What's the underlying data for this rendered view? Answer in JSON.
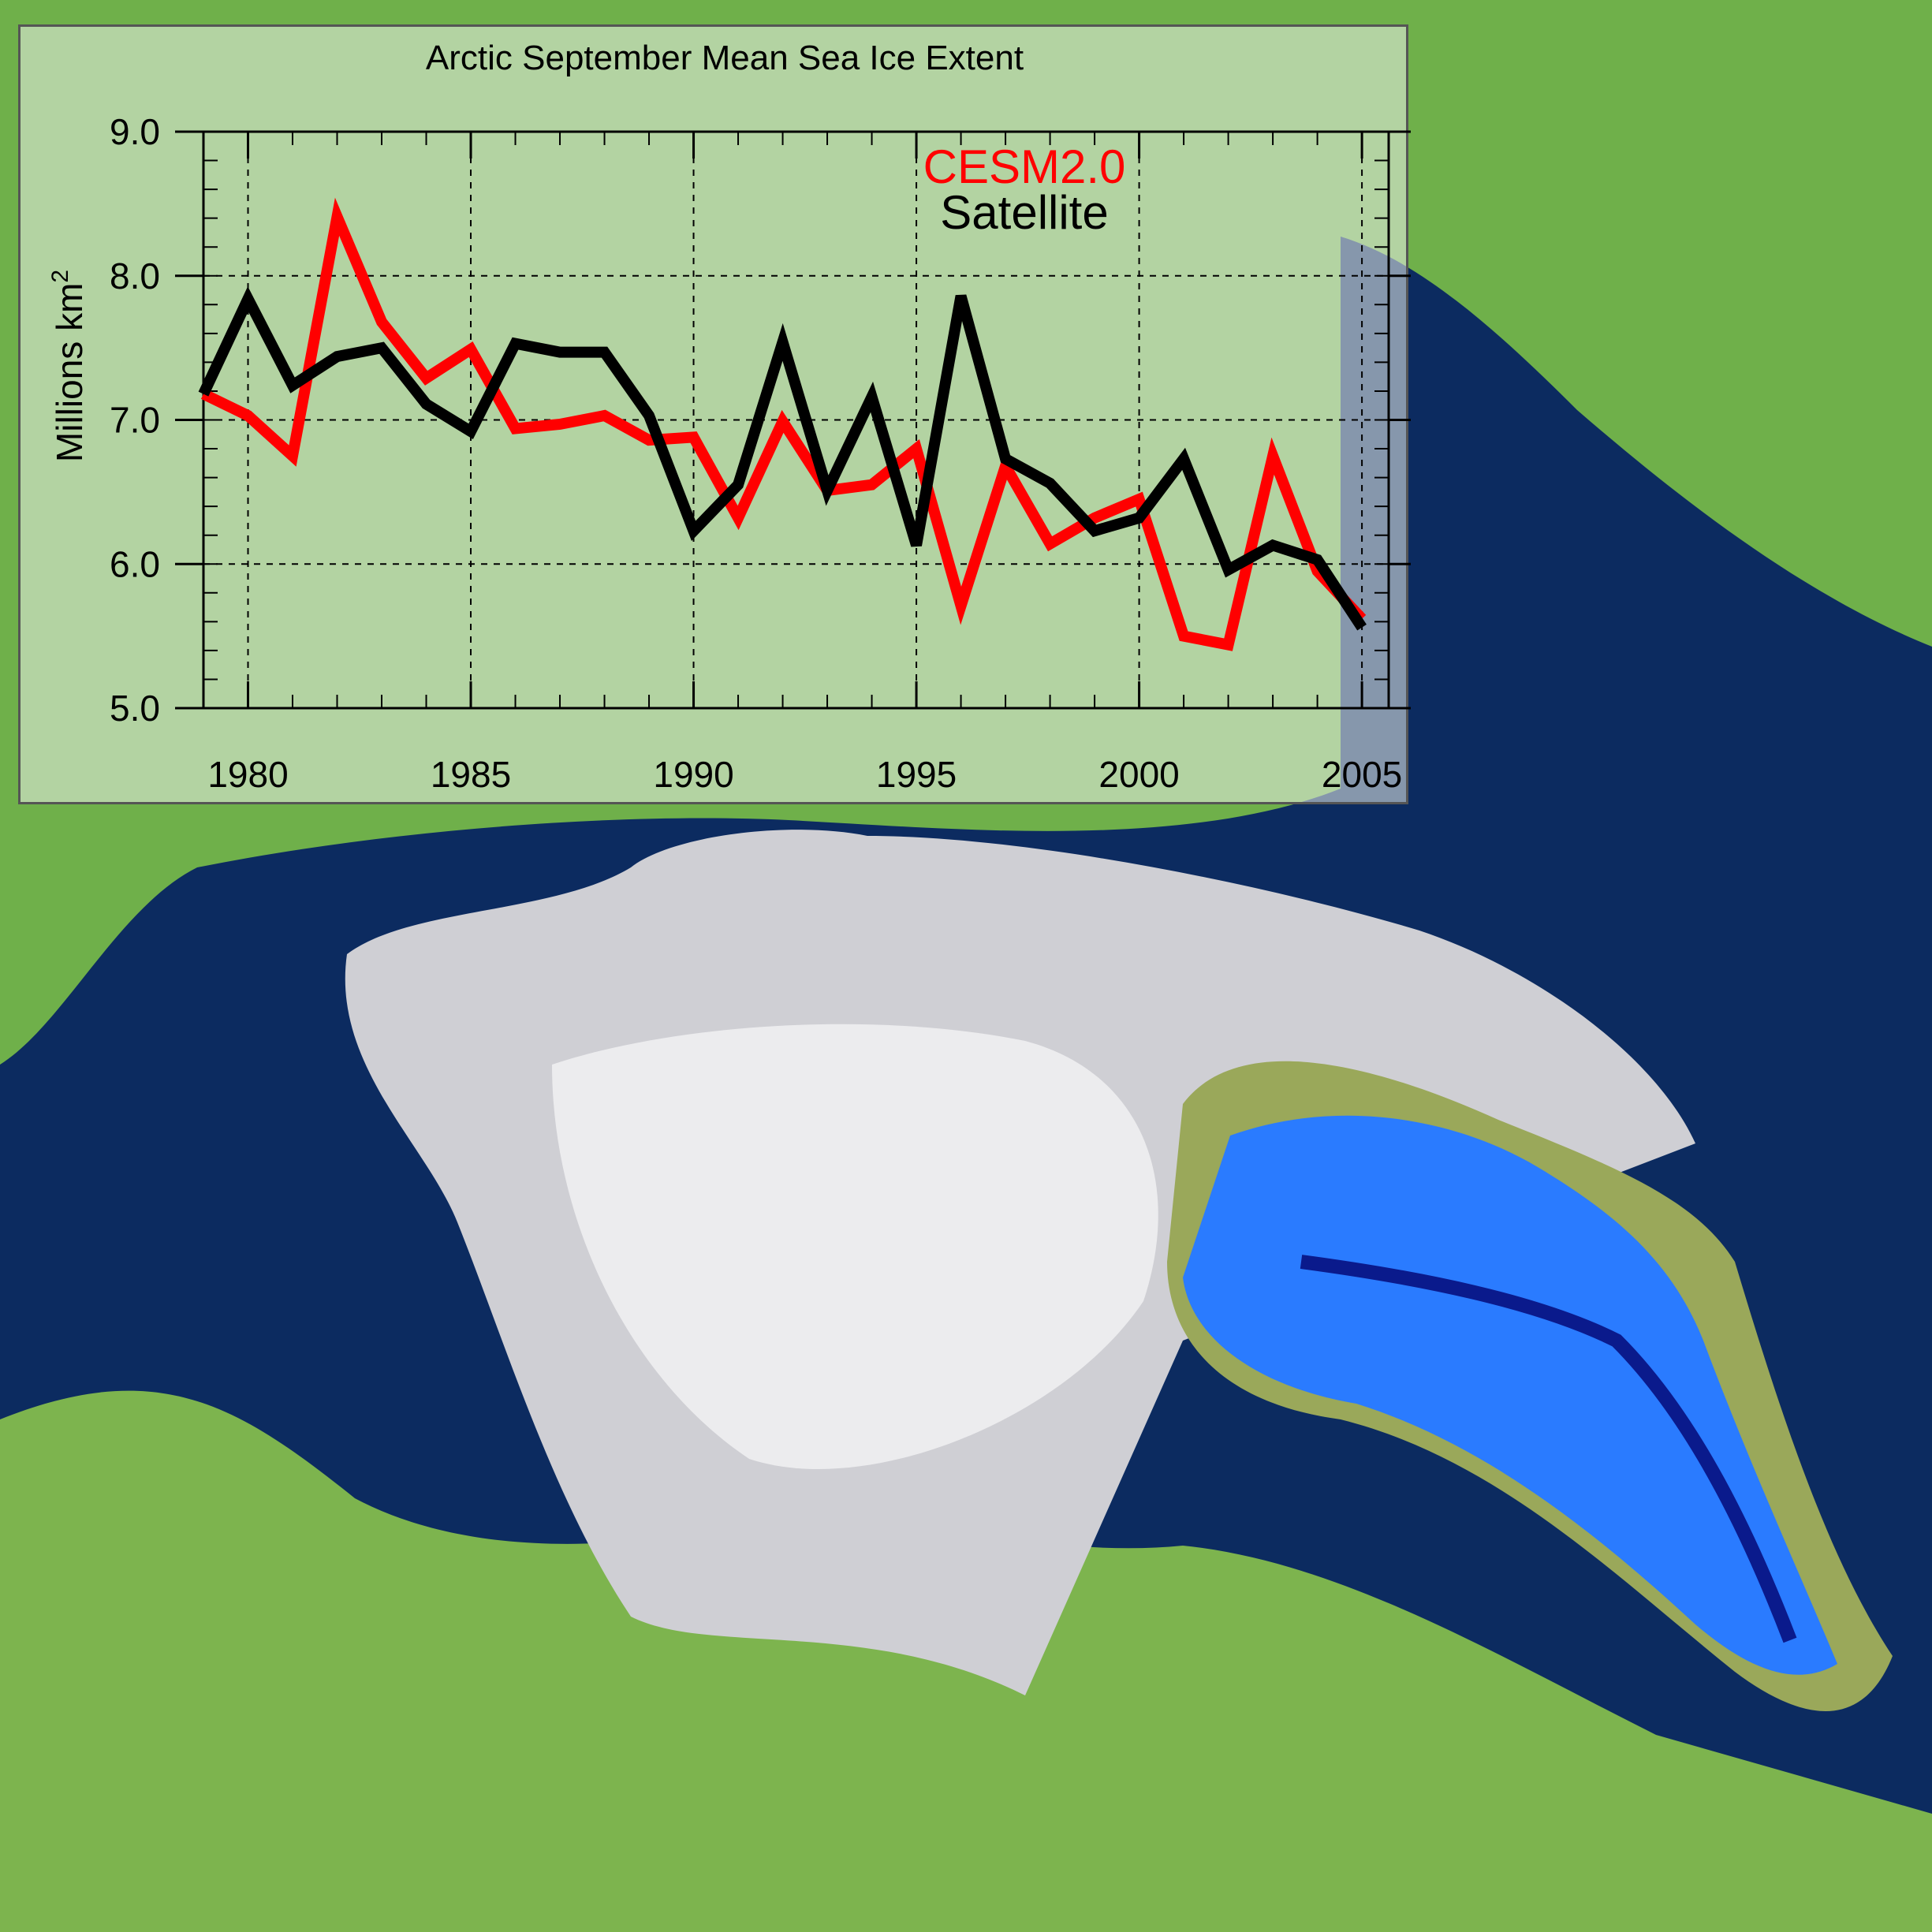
{
  "chart_data": {
    "type": "line",
    "title": "Arctic September Mean Sea Ice Extent",
    "xlabel": "",
    "ylabel": "Millions km",
    "ylabel_superscript": "2",
    "xlim": [
      1979,
      2005.6
    ],
    "ylim": [
      5.0,
      9.0
    ],
    "xticks": [
      1980,
      1985,
      1990,
      1995,
      2000,
      2005
    ],
    "xtick_labels": [
      "1980",
      "1985",
      "1990",
      "1995",
      "2000",
      "2005"
    ],
    "yticks": [
      5.0,
      6.0,
      7.0,
      8.0,
      9.0
    ],
    "ytick_labels": [
      "5.0",
      "6.0",
      "7.0",
      "8.0",
      "9.0"
    ],
    "grid": true,
    "legend_placement": "top-center",
    "x": [
      1979,
      1980,
      1981,
      1982,
      1983,
      1984,
      1985,
      1986,
      1987,
      1988,
      1989,
      1990,
      1991,
      1992,
      1993,
      1994,
      1995,
      1996,
      1997,
      1998,
      1999,
      2000,
      2001,
      2002,
      2003,
      2004,
      2005
    ],
    "series": [
      {
        "name": "CESM2.0",
        "color": "#ff0000",
        "values": [
          7.18,
          7.03,
          6.75,
          8.41,
          7.68,
          7.29,
          7.49,
          6.94,
          6.97,
          7.03,
          6.86,
          6.88,
          6.32,
          6.99,
          6.51,
          6.55,
          6.8,
          5.71,
          6.68,
          6.14,
          6.32,
          6.45,
          5.5,
          5.44,
          6.75,
          5.95,
          5.62
        ]
      },
      {
        "name": "Satellite",
        "color": "#000000",
        "values": [
          7.18,
          7.84,
          7.24,
          7.44,
          7.5,
          7.11,
          6.92,
          7.53,
          7.47,
          7.47,
          7.03,
          6.23,
          6.55,
          7.54,
          6.51,
          7.16,
          6.13,
          7.86,
          6.73,
          6.56,
          6.23,
          6.32,
          6.73,
          5.96,
          6.13,
          6.03,
          5.56
        ]
      }
    ]
  },
  "background": {
    "ocean_color": "#0c2b60",
    "land_color": "#5fa83a",
    "ice_color": "#d8d8dc"
  }
}
